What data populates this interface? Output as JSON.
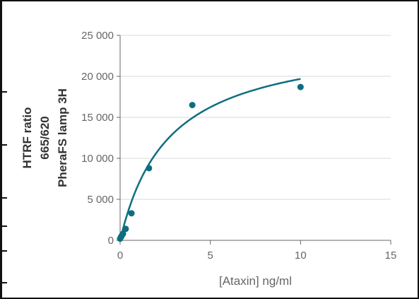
{
  "chart_data": {
    "type": "scatter",
    "title": "",
    "xlabel": "[Ataxin] ng/ml",
    "ylabel_lines": [
      "HTRF ratio",
      "665/620",
      "PheraFS lamp 3H"
    ],
    "xlim": [
      0,
      15
    ],
    "ylim": [
      0,
      25000
    ],
    "x_ticks": [
      0,
      5,
      10,
      15
    ],
    "x_tick_labels": [
      "0",
      "5",
      "10",
      "15"
    ],
    "y_ticks": [
      0,
      5000,
      10000,
      15000,
      20000,
      25000
    ],
    "y_tick_labels": [
      "0",
      "5 000",
      "10 000",
      "15 000",
      "20 000",
      "25 000"
    ],
    "grid": "horizontal",
    "legend": "none",
    "series": [
      {
        "x": [
          0.0,
          0.05,
          0.1,
          0.16,
          0.31,
          0.63,
          1.6,
          4.0,
          10.0
        ],
        "y": [
          200,
          400,
          600,
          800,
          1400,
          3300,
          8800,
          16500,
          18700
        ],
        "color": "#0c6f80"
      }
    ],
    "fit_curve": {
      "type": "saturation",
      "ymax": 25000,
      "half_max": 2.7,
      "x_range": [
        0,
        10
      ],
      "color": "#0c6f80"
    }
  }
}
